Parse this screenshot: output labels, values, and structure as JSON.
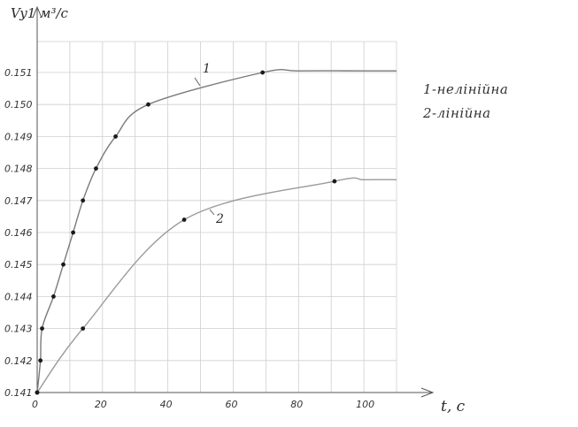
{
  "chart_data": {
    "type": "line",
    "ylabel": "Vy1 м³/с",
    "xlabel": "t, с",
    "xlim": [
      0,
      110
    ],
    "ylim": [
      0.141,
      0.1515
    ],
    "x_ticks": [
      0,
      20,
      40,
      60,
      80,
      100
    ],
    "y_ticks": [
      0.141,
      0.142,
      0.143,
      0.144,
      0.145,
      0.146,
      0.147,
      0.148,
      0.149,
      0.15,
      0.151
    ],
    "x_tick_labels": [
      "0",
      "20",
      "40",
      "60",
      "80",
      "100"
    ],
    "y_tick_labels": [
      "0.141",
      "0.142",
      "0.143",
      "0.144",
      "0.145",
      "0.146",
      "0.147",
      "0.148",
      "0.149",
      "0.150",
      "0.151"
    ],
    "grid": true,
    "legend": [
      "1-нелінійна",
      "2-лінійна"
    ],
    "series": [
      {
        "name": "1",
        "color": "#7a7a7a",
        "points": [
          [
            0,
            0.141
          ],
          [
            1,
            0.142
          ],
          [
            1.5,
            0.143
          ],
          [
            5,
            0.144
          ],
          [
            8,
            0.145
          ],
          [
            11,
            0.146
          ],
          [
            14,
            0.147
          ],
          [
            18,
            0.148
          ],
          [
            24,
            0.149
          ],
          [
            34,
            0.15
          ],
          [
            69,
            0.151
          ]
        ],
        "tail": [
          [
            80,
            0.15105
          ],
          [
            100,
            0.15105
          ],
          [
            110,
            0.15105
          ]
        ]
      },
      {
        "name": "2",
        "color": "#9a9a9a",
        "points": [
          [
            0,
            0.141
          ],
          [
            14,
            0.143
          ],
          [
            45,
            0.1464
          ],
          [
            91,
            0.1476
          ]
        ],
        "tail": [
          [
            100,
            0.14765
          ],
          [
            110,
            0.14765
          ]
        ]
      }
    ]
  }
}
